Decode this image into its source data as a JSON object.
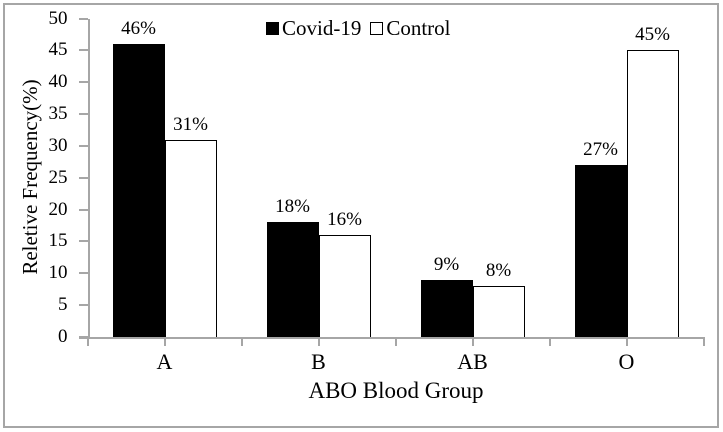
{
  "figure": {
    "background": "#ffffff",
    "border_color": "#a6a6a6"
  },
  "chart_data": {
    "type": "bar",
    "categories": [
      "A",
      "B",
      "AB",
      "O"
    ],
    "series": [
      {
        "name": "Covid-19",
        "values": [
          46,
          18,
          9,
          27
        ],
        "labels": [
          "46%",
          "18%",
          "9%",
          "27%"
        ],
        "fill": "#000000",
        "border": "#000000"
      },
      {
        "name": "Control",
        "values": [
          31,
          16,
          8,
          45
        ],
        "labels": [
          "31%",
          "16%",
          "8%",
          "45%"
        ],
        "fill": "#ffffff",
        "border": "#000000"
      }
    ],
    "data_label_suffix": "%",
    "title": "",
    "xlabel": "ABO Blood Group",
    "ylabel": "Reletive Frequency(%)",
    "ylim": [
      0,
      50
    ],
    "ytick_step": 5,
    "ytick_labels": [
      "0",
      "5",
      "10",
      "15",
      "20",
      "25",
      "30",
      "35",
      "40",
      "45",
      "50"
    ],
    "grid": false,
    "legend_position": "top-center",
    "axis_color": "#a6a6a6"
  }
}
